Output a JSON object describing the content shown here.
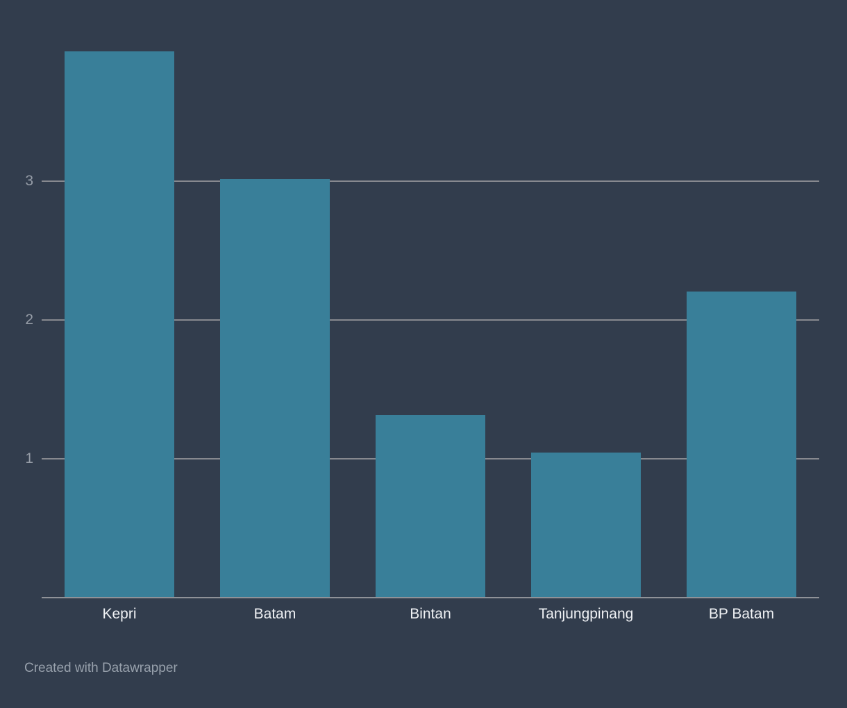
{
  "background_color": "#323d4d",
  "chart_data": {
    "type": "bar",
    "categories": [
      "Kepri",
      "Batam",
      "Bintan",
      "Tanjungpinang",
      "BP Batam"
    ],
    "values": [
      3.93,
      3.01,
      1.31,
      1.04,
      2.2
    ],
    "title": "",
    "xlabel": "",
    "ylabel": "",
    "ylim": [
      0,
      4
    ],
    "yticks": [
      1,
      2,
      3
    ],
    "grid": true,
    "legend": "none",
    "bar_color": "#397f99",
    "gridline_color": "#87898f",
    "baseline_color": "#8f9298",
    "tick_label_color": "#969da7",
    "category_label_color": "#f0f2f5"
  },
  "footer": {
    "credit": "Created with Datawrapper",
    "color": "#98a1ac"
  }
}
